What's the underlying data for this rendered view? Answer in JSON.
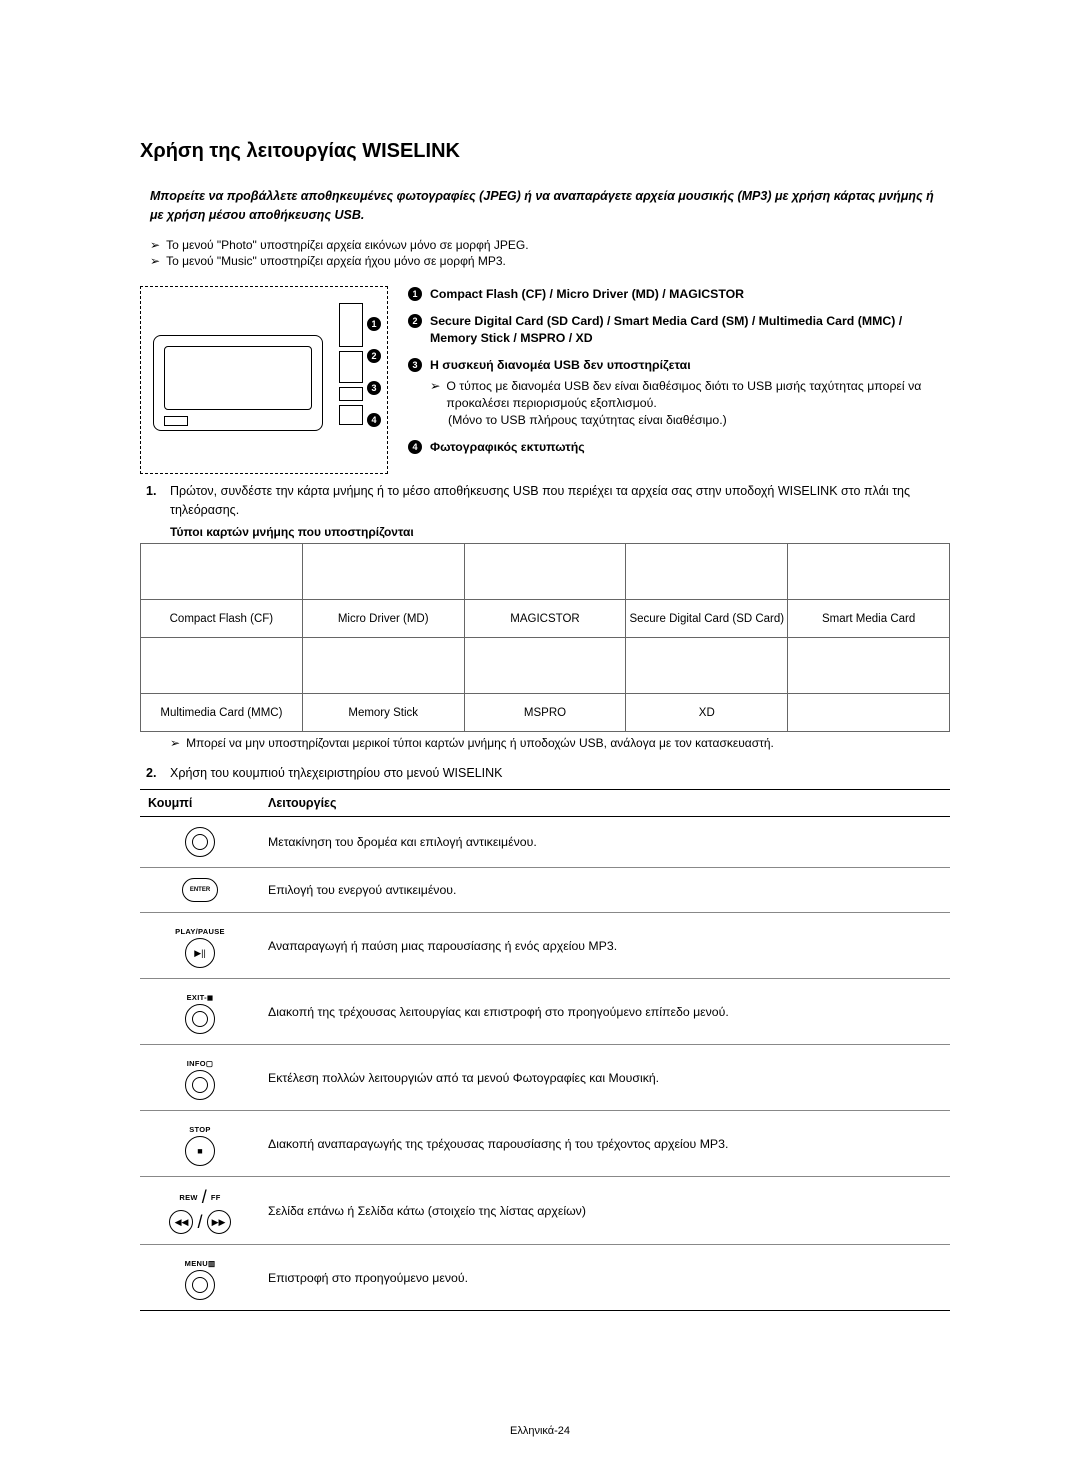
{
  "title": "Χρήση της λειτουργίας WISELINK",
  "intro": "Μπορείτε να προβάλλετε αποθηκευμένες φωτογραφίες (JPEG) ή να αναπαράγετε αρχεία μουσικής (MP3) με χρήση κάρτας μνήμης ή με χρήση μέσου αποθήκευσης USB.",
  "notes": [
    "Το μενού \"Photo\" υποστηρίζει αρχεία εικόνων μόνο σε μορφή JPEG.",
    "Το μενού \"Music\" υποστηρίζει αρχεία ήχου μόνο σε μορφή MP3."
  ],
  "ports": {
    "p1": "Compact Flash (CF) / Micro Driver (MD) / MAGICSTOR",
    "p2": "Secure Digital Card (SD Card) / Smart Media Card (SM) / Multimedia Card (MMC) / Memory Stick / MSPRO / XD",
    "p3_title": "Η συσκευή διανομέα USB δεν υποστηρίζεται",
    "p3_sub1": "Ο τύπος με διανομέα USB δεν είναι διαθέσιμος διότι το USB μισής ταχύτητας μπορεί να προκαλέσει περιορισμούς εξοπλισμού.",
    "p3_sub2": "(Μόνο το USB πλήρους ταχύτητας είναι διαθέσιμο.)",
    "p4": "Φωτογραφικός εκτυπωτής"
  },
  "step1_n": "1.",
  "step1": "Πρώτον, συνδέστε την κάρτα μνήμης ή το μέσο αποθήκευσης USB που περιέχει τα αρχεία σας στην   υποδοχή WISELINK στο πλάι της τηλεόρασης.",
  "cards_table_title": "Τύποι καρτών μνήμης που υποστηρίζονται",
  "cards": {
    "r1": [
      "Compact Flash (CF)",
      "Micro Driver (MD)",
      "MAGICSTOR",
      "Secure Digital Card (SD Card)",
      "Smart Media Card"
    ],
    "r2": [
      "Multimedia Card (MMC)",
      "Memory Stick",
      "MSPRO",
      "XD",
      ""
    ]
  },
  "cards_note": "Μπορεί να μην υποστηρίζονται μερικοί τύποι καρτών μνήμης ή υποδοχών USB, ανάλογα με τον κατασκευαστή.",
  "step2_n": "2.",
  "step2": "Χρήση του κουμπιού τηλεχειριστηρίου στο μενού WISELINK",
  "btable": {
    "h1": "Κουμπί",
    "h2": "Λειτουργίες",
    "rows": [
      {
        "label": "",
        "glyph": "nav",
        "desc": "Μετακίνηση του δρομέα και επιλογή αντικειμένου."
      },
      {
        "label": "ENTER",
        "glyph": "pill",
        "desc": "Επιλογή του ενεργού αντικειμένου."
      },
      {
        "label": "PLAY/PAUSE",
        "glyph": "round",
        "inner": "▶||",
        "desc": "Αναπαραγωγή ή παύση μιας παρουσίασης ή ενός αρχείου MP3."
      },
      {
        "label": "EXIT-◼",
        "glyph": "ring",
        "desc": "Διακοπή της τρέχουσας λειτουργίας και επιστροφή στο προηγούμενο επίπεδο μενού."
      },
      {
        "label": "INFO▢",
        "glyph": "ring",
        "desc": "Εκτέλεση πολλών λειτουργιών από τα μενού Φωτογραφίες και Μουσική."
      },
      {
        "label": "STOP",
        "glyph": "round",
        "inner": "■",
        "desc": "Διακοπή αναπαραγωγής της τρέχουσας παρουσίασης ή του τρέχοντος αρχείου MP3."
      },
      {
        "label": "REW / FF",
        "glyph": "dual",
        "desc": "Σελίδα επάνω ή Σελίδα κάτω (στοιχείο της λίστας αρχείων)"
      },
      {
        "label": "MENU▥",
        "glyph": "ring",
        "desc": "Επιστροφή στο προηγούμενο μενού."
      }
    ],
    "rew": "REW",
    "ff": "FF"
  },
  "footer": "Ελληνικά-24",
  "colors": {
    "text": "#000000",
    "bg": "#ffffff",
    "border": "#666666"
  }
}
